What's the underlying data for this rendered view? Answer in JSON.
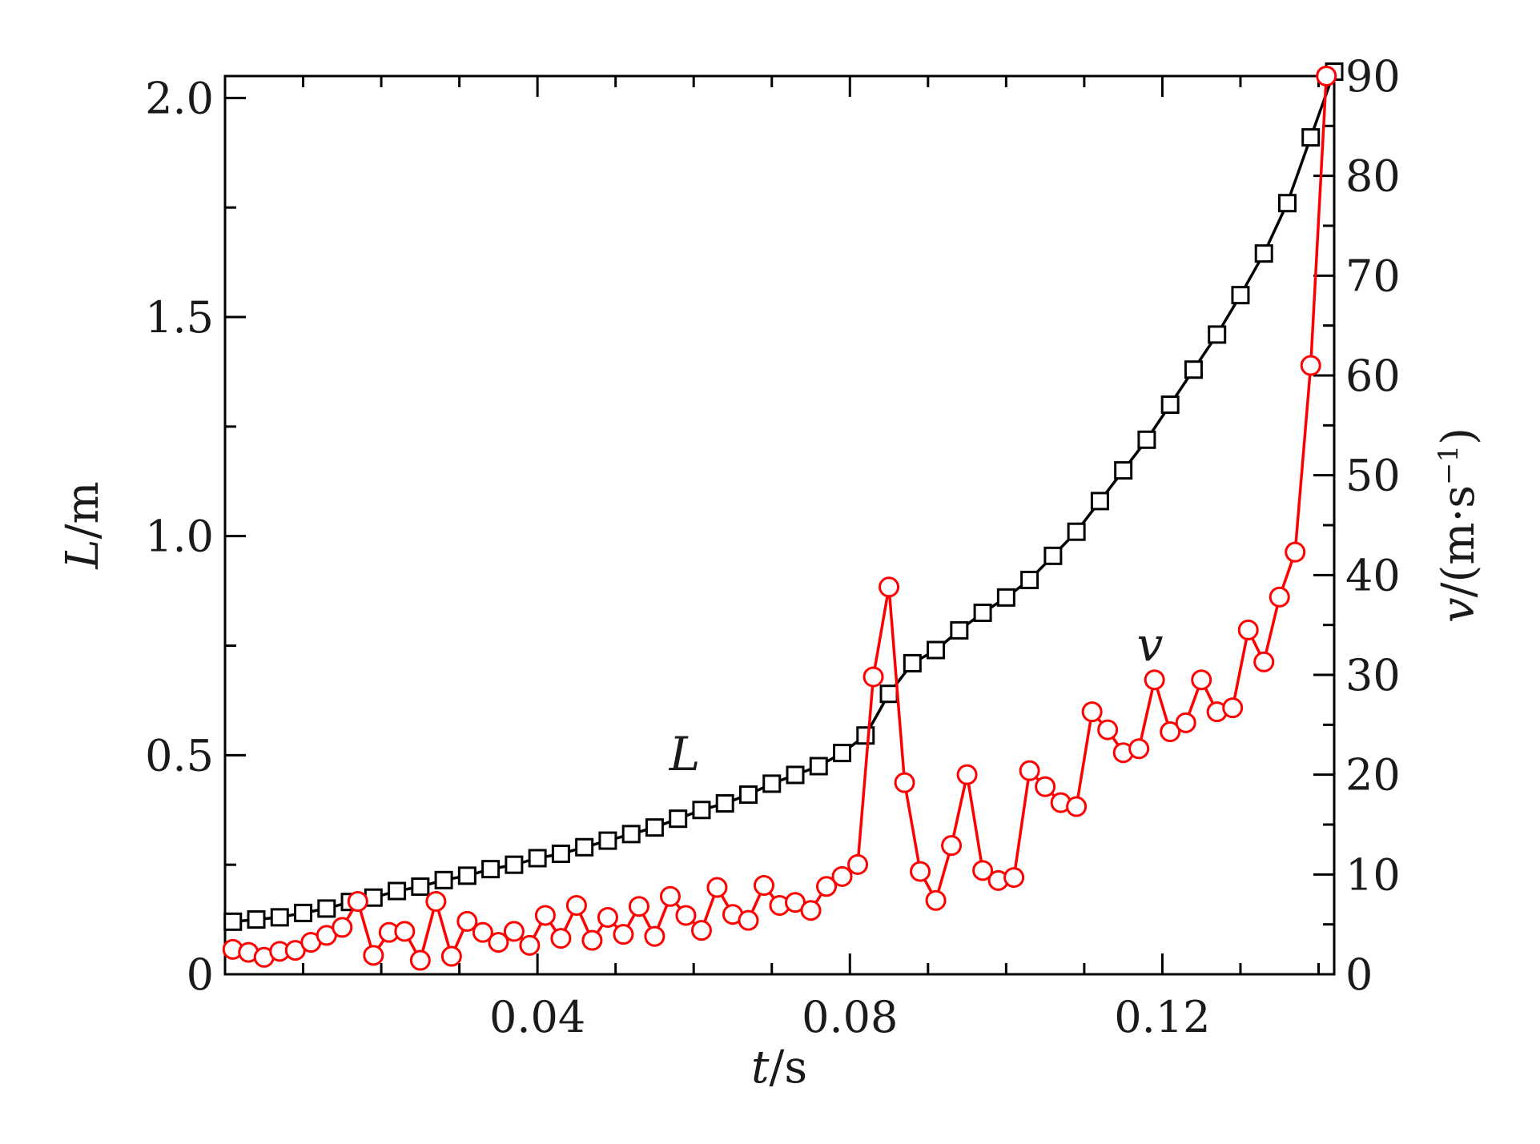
{
  "chart_data": {
    "type": "line",
    "x_axis": {
      "label_var": "t",
      "label_unit": "/s",
      "range": [
        0,
        0.142
      ],
      "ticks": [
        0.04,
        0.08,
        0.12
      ],
      "tick_labels": [
        "0.04",
        "0.08",
        "0.12"
      ],
      "minor_step": 0.01
    },
    "y_left": {
      "label_var": "L",
      "label_unit": "/m",
      "range": [
        0,
        2.05
      ],
      "ticks": [
        0,
        0.5,
        1.0,
        1.5,
        2.0
      ],
      "tick_labels": [
        "0",
        "0.5",
        "1.0",
        "1.5",
        "2.0"
      ],
      "minor_step": 0.25
    },
    "y_right": {
      "label_var": "v",
      "label_unit": "/(m·s",
      "label_sup": "−1",
      "label_close": ")",
      "range": [
        0,
        90
      ],
      "ticks": [
        0,
        10,
        20,
        30,
        40,
        50,
        60,
        70,
        80,
        90
      ],
      "tick_labels": [
        "0",
        "10",
        "20",
        "30",
        "40",
        "50",
        "60",
        "70",
        "80",
        "90"
      ],
      "minor_step": 5
    },
    "series": [
      {
        "name": "L",
        "axis": "left",
        "color": "#000000",
        "marker": "square",
        "x": [
          0.001,
          0.004,
          0.007,
          0.01,
          0.013,
          0.016,
          0.019,
          0.022,
          0.025,
          0.028,
          0.031,
          0.034,
          0.037,
          0.04,
          0.043,
          0.046,
          0.049,
          0.052,
          0.055,
          0.058,
          0.061,
          0.064,
          0.067,
          0.07,
          0.073,
          0.076,
          0.079,
          0.082,
          0.085,
          0.088,
          0.091,
          0.094,
          0.097,
          0.1,
          0.103,
          0.106,
          0.109,
          0.112,
          0.115,
          0.118,
          0.121,
          0.124,
          0.127,
          0.13,
          0.133,
          0.136,
          0.139,
          0.142
        ],
        "y": [
          0.12,
          0.125,
          0.13,
          0.14,
          0.15,
          0.165,
          0.175,
          0.19,
          0.2,
          0.215,
          0.225,
          0.24,
          0.25,
          0.265,
          0.275,
          0.29,
          0.305,
          0.32,
          0.335,
          0.355,
          0.375,
          0.39,
          0.41,
          0.435,
          0.455,
          0.475,
          0.505,
          0.545,
          0.64,
          0.71,
          0.74,
          0.785,
          0.825,
          0.86,
          0.9,
          0.955,
          1.01,
          1.08,
          1.15,
          1.22,
          1.3,
          1.38,
          1.46,
          1.55,
          1.645,
          1.76,
          1.91,
          2.06
        ]
      },
      {
        "name": "v",
        "axis": "right",
        "color": "#ff0000",
        "marker": "circle",
        "x": [
          0.001,
          0.003,
          0.005,
          0.007,
          0.009,
          0.011,
          0.013,
          0.015,
          0.017,
          0.019,
          0.021,
          0.023,
          0.025,
          0.027,
          0.029,
          0.031,
          0.033,
          0.035,
          0.037,
          0.039,
          0.041,
          0.043,
          0.045,
          0.047,
          0.049,
          0.051,
          0.053,
          0.055,
          0.057,
          0.059,
          0.061,
          0.063,
          0.065,
          0.067,
          0.069,
          0.071,
          0.073,
          0.075,
          0.077,
          0.079,
          0.081,
          0.083,
          0.085,
          0.087,
          0.089,
          0.091,
          0.093,
          0.095,
          0.097,
          0.099,
          0.101,
          0.103,
          0.105,
          0.107,
          0.109,
          0.111,
          0.113,
          0.115,
          0.117,
          0.119,
          0.121,
          0.123,
          0.125,
          0.127,
          0.129,
          0.131,
          0.133,
          0.135,
          0.137,
          0.139,
          0.141
        ],
        "y": [
          2.5,
          2.2,
          1.7,
          2.3,
          2.4,
          3.2,
          3.9,
          4.7,
          7.3,
          1.9,
          4.2,
          4.3,
          1.4,
          7.3,
          1.8,
          5.3,
          4.2,
          3.2,
          4.3,
          2.9,
          5.9,
          3.6,
          6.9,
          3.4,
          5.7,
          4.0,
          6.8,
          3.8,
          7.8,
          5.9,
          4.4,
          8.7,
          6.0,
          5.4,
          8.9,
          6.9,
          7.2,
          6.4,
          8.8,
          9.8,
          11.0,
          29.8,
          38.8,
          19.2,
          10.3,
          7.4,
          12.9,
          20.0,
          10.4,
          9.4,
          9.7,
          20.4,
          18.8,
          17.2,
          16.8,
          26.3,
          24.5,
          22.2,
          22.6,
          29.5,
          24.3,
          25.2,
          29.5,
          26.3,
          26.7,
          34.5,
          31.3,
          37.8,
          42.3,
          61.0,
          90.0
        ]
      }
    ]
  }
}
